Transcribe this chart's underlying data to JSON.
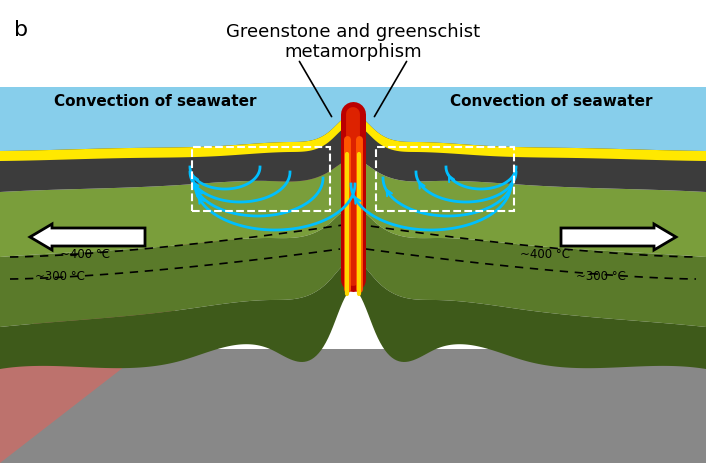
{
  "title": "Greenstone and greenschist\nmetamorphism",
  "label_b": "b",
  "label_left": "Convection of seawater",
  "label_right": "Convection of seawater",
  "label_300_left": "~300 °C",
  "label_400_left": "~400 °C",
  "label_300_right": "~300 °C",
  "label_400_right": "~400 °C",
  "color_sky": "#87CEEB",
  "color_yellow": "#FFE800",
  "color_dark_gray": "#3C3C3C",
  "color_green_light": "#7A9E3B",
  "color_green_mid": "#5A7A2A",
  "color_green_dark": "#3E5A1A",
  "color_gray_bottom": "#888888",
  "color_red_dark": "#AA0000",
  "color_red": "#CC2200",
  "color_orange": "#FF5500",
  "color_yellow_lava": "#FFD700",
  "color_cyan": "#00BFFF",
  "color_white": "#FFFFFF",
  "color_black": "#000000",
  "figw": 7.06,
  "figh": 4.64,
  "dpi": 100
}
